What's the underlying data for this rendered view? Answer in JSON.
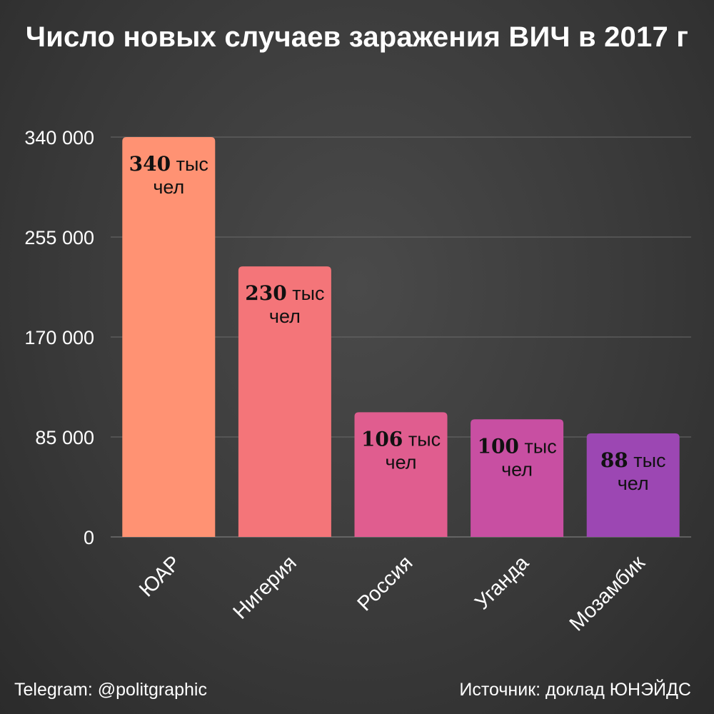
{
  "footer": {
    "telegram": "Telegram: @politgraphic",
    "source": "Источник: доклад ЮНЭЙДС"
  },
  "chart_data": {
    "type": "bar",
    "title": "Число новых случаев заражения ВИЧ в 2017 г",
    "categories": [
      "ЮАР",
      "Нигерия",
      "Россия",
      "Уганда",
      "Мозамбик"
    ],
    "values": [
      340000,
      230000,
      106000,
      100000,
      88000
    ],
    "data_labels": [
      {
        "number": "340",
        "unit_line1": " тыс",
        "unit_line2": "чел"
      },
      {
        "number": "230",
        "unit_line1": " тыс",
        "unit_line2": "чел"
      },
      {
        "number": "106",
        "unit_line1": " тыс",
        "unit_line2": "чел"
      },
      {
        "number": "100",
        "unit_line1": " тыс",
        "unit_line2": "чел"
      },
      {
        "number": "88",
        "unit_line1": " тыс",
        "unit_line2": "чел"
      }
    ],
    "y_ticks": [
      0,
      85000,
      170000,
      255000,
      340000
    ],
    "y_tick_labels": [
      "0",
      "85 000",
      "170 000",
      "255 000",
      "340 000"
    ],
    "ylim": [
      0,
      340000
    ],
    "grid": true,
    "colors": [
      "#ff9273",
      "#f47579",
      "#e05d8f",
      "#c84fa2",
      "#9c47b3"
    ],
    "xlabel": "",
    "ylabel": ""
  }
}
